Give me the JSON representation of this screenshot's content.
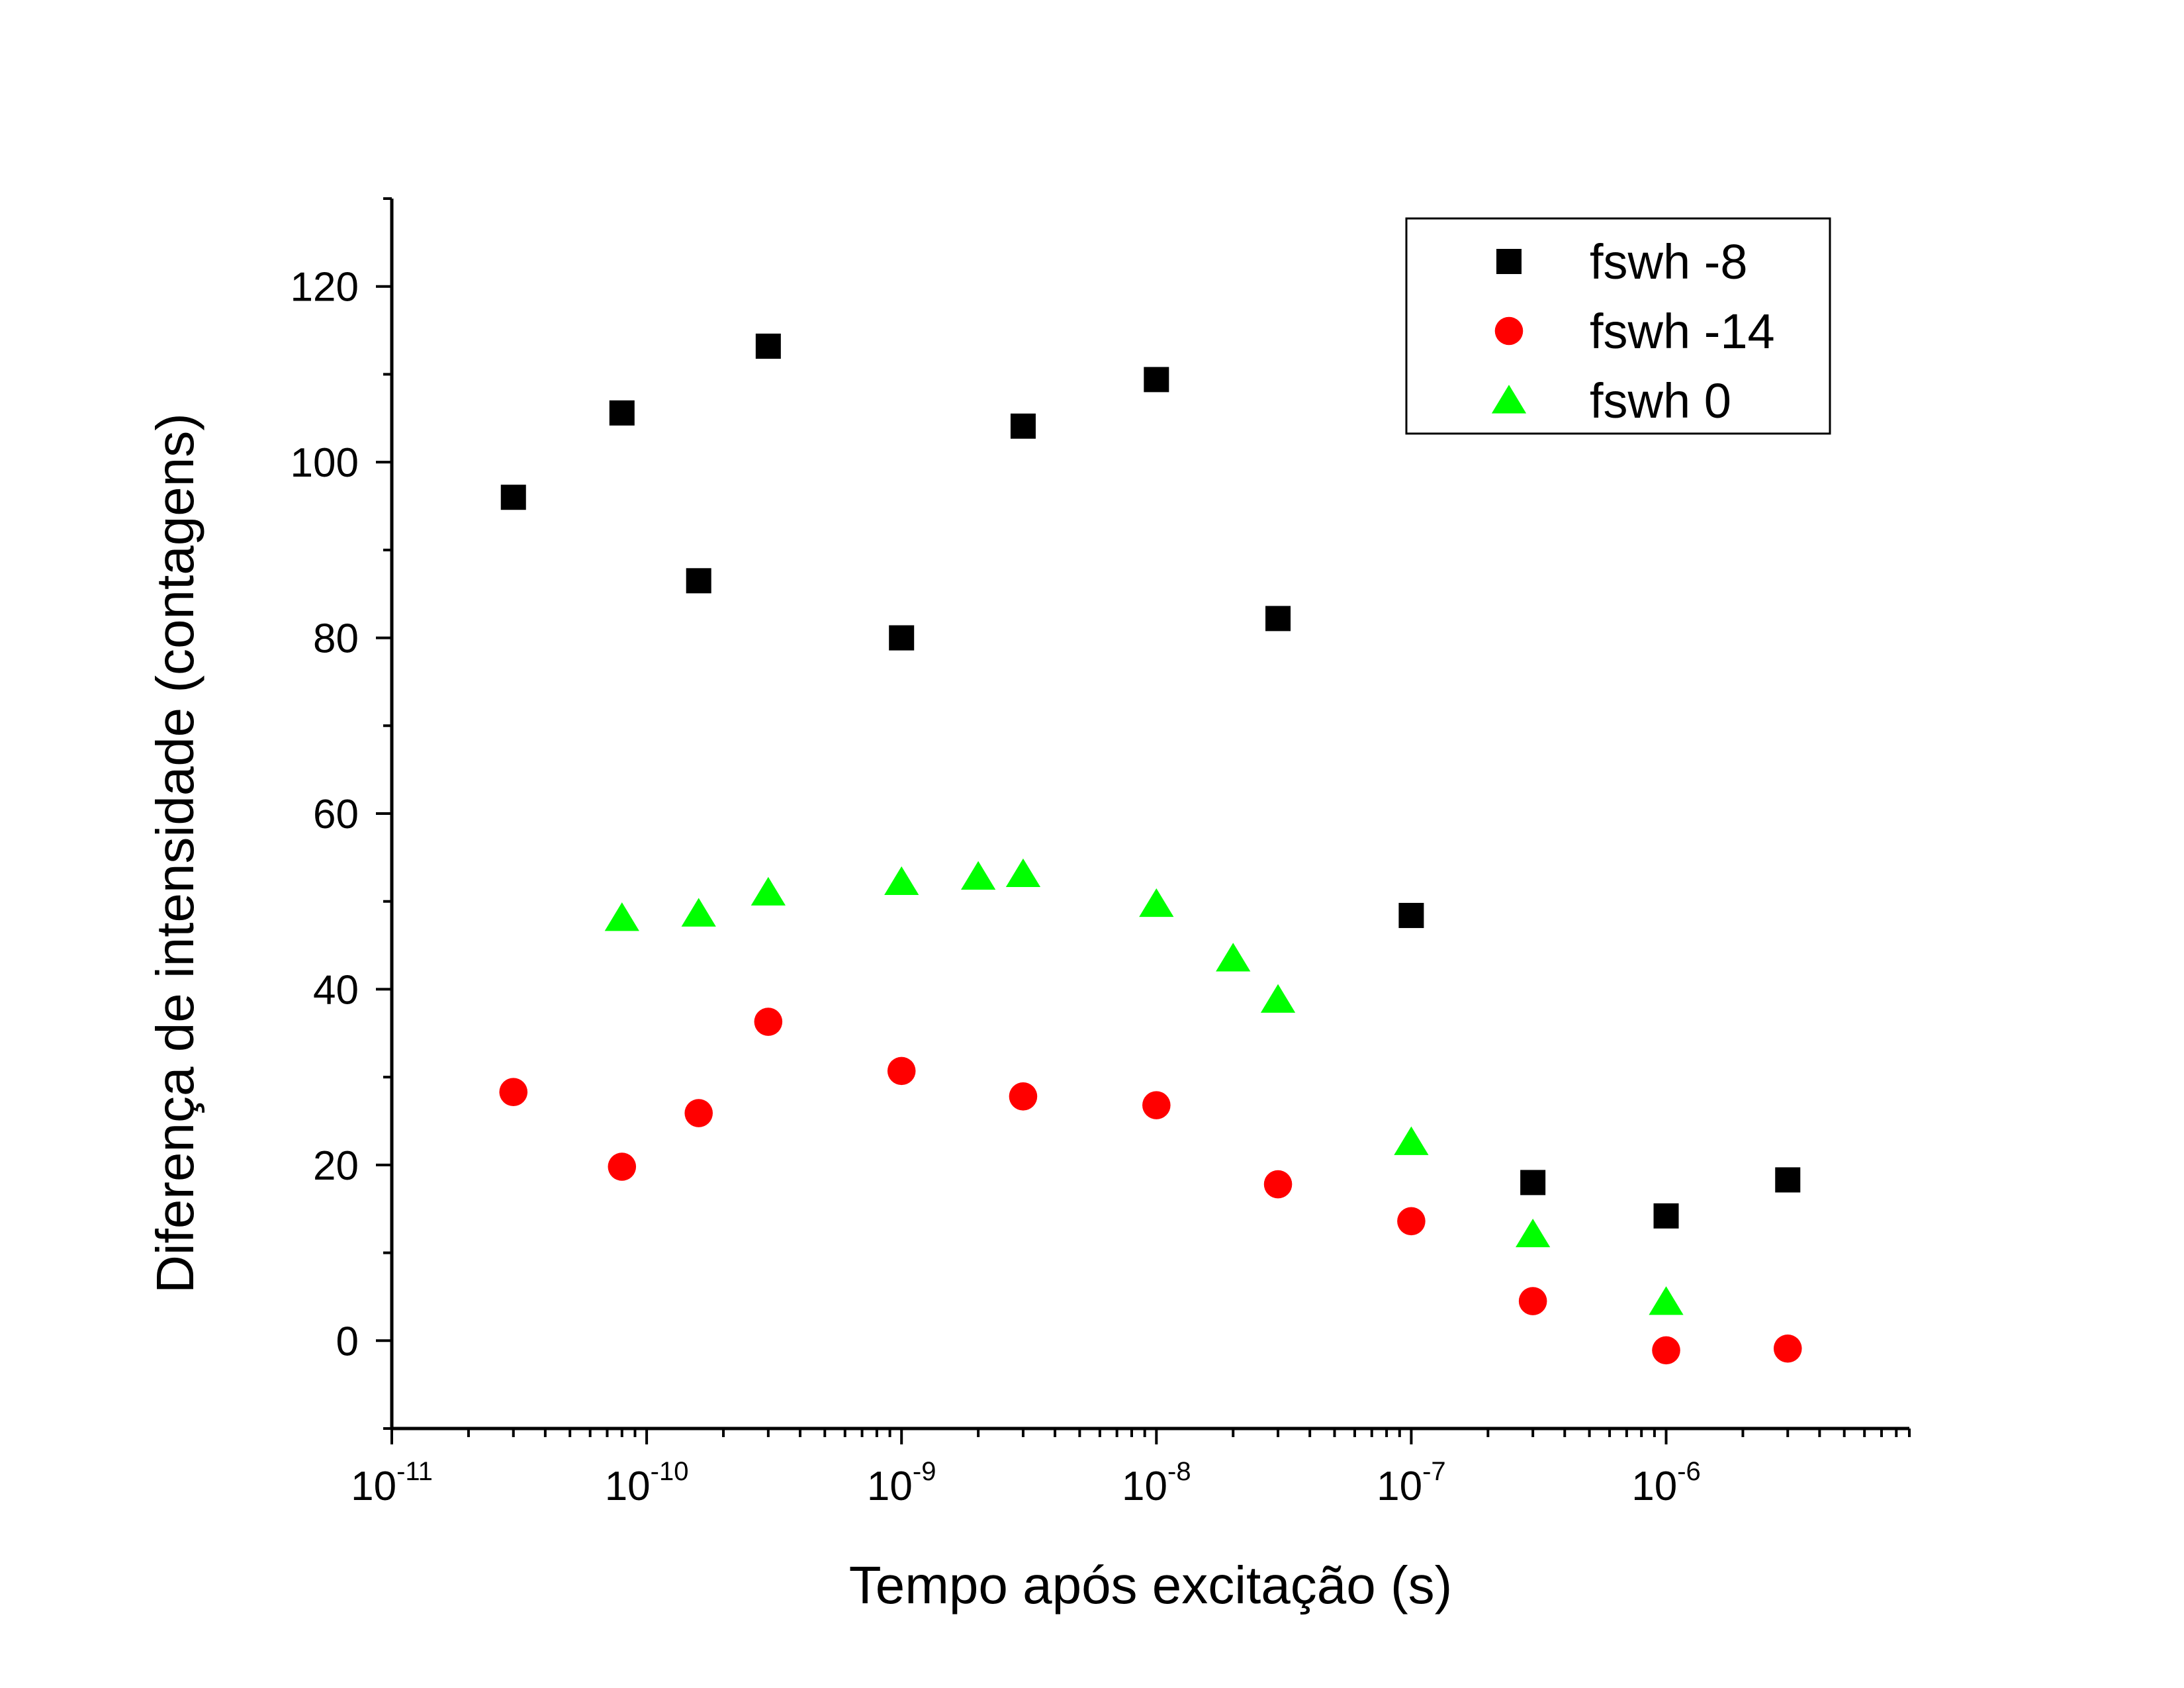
{
  "chart_data": {
    "type": "scatter",
    "title": "",
    "xlabel": "Tempo após excitação (s)",
    "ylabel": "Diferença de intensidade (contagens)",
    "x_scale": "log",
    "xlim": [
      1e-11,
      9e-06
    ],
    "ylim": [
      -10,
      130
    ],
    "x_ticks": [
      {
        "base": "10",
        "exp": "-11",
        "value": 1e-11
      },
      {
        "base": "10",
        "exp": "-10",
        "value": 1e-10
      },
      {
        "base": "10",
        "exp": "-9",
        "value": 1e-09
      },
      {
        "base": "10",
        "exp": "-8",
        "value": 1e-08
      },
      {
        "base": "10",
        "exp": "-7",
        "value": 1e-07
      },
      {
        "base": "10",
        "exp": "-6",
        "value": 1e-06
      }
    ],
    "y_ticks": [
      0,
      20,
      40,
      60,
      80,
      100,
      120
    ],
    "grid": false,
    "legend_position": "top-right",
    "series": [
      {
        "name": "fswh -8",
        "marker": "square",
        "color": "#000000",
        "points": [
          {
            "x": 3e-11,
            "y": 96
          },
          {
            "x": 8e-11,
            "y": 105.6
          },
          {
            "x": 1.6e-10,
            "y": 86.5
          },
          {
            "x": 3e-10,
            "y": 113.2
          },
          {
            "x": 1e-09,
            "y": 80
          },
          {
            "x": 3e-09,
            "y": 104.1
          },
          {
            "x": 1e-08,
            "y": 109.4
          },
          {
            "x": 3e-08,
            "y": 82.2
          },
          {
            "x": 1e-07,
            "y": 48.4
          },
          {
            "x": 3e-07,
            "y": 18
          },
          {
            "x": 1e-06,
            "y": 14.2
          },
          {
            "x": 3e-06,
            "y": 18.3
          }
        ]
      },
      {
        "name": "fswh -14",
        "marker": "circle",
        "color": "#ff0000",
        "points": [
          {
            "x": 3e-11,
            "y": 28.3
          },
          {
            "x": 8e-11,
            "y": 19.8
          },
          {
            "x": 1.6e-10,
            "y": 25.9
          },
          {
            "x": 3e-10,
            "y": 36.3
          },
          {
            "x": 1e-09,
            "y": 30.7
          },
          {
            "x": 3e-09,
            "y": 27.8
          },
          {
            "x": 1e-08,
            "y": 26.8
          },
          {
            "x": 3e-08,
            "y": 17.8
          },
          {
            "x": 1e-07,
            "y": 13.6
          },
          {
            "x": 3e-07,
            "y": 4.5
          },
          {
            "x": 1e-06,
            "y": -1.1
          },
          {
            "x": 3e-06,
            "y": -0.9
          }
        ]
      },
      {
        "name": "fswh 0",
        "marker": "triangle",
        "color": "#00ff00",
        "points": [
          {
            "x": 8e-11,
            "y": 48.1
          },
          {
            "x": 1.6e-10,
            "y": 48.6
          },
          {
            "x": 3e-10,
            "y": 51
          },
          {
            "x": 1e-09,
            "y": 52.2
          },
          {
            "x": 2e-09,
            "y": 52.8
          },
          {
            "x": 3e-09,
            "y": 53.1
          },
          {
            "x": 1e-08,
            "y": 49.7
          },
          {
            "x": 2e-08,
            "y": 43.5
          },
          {
            "x": 3e-08,
            "y": 38.8
          },
          {
            "x": 1e-07,
            "y": 22.6
          },
          {
            "x": 3e-07,
            "y": 12.1
          },
          {
            "x": 1e-06,
            "y": 4.4
          }
        ]
      }
    ]
  }
}
